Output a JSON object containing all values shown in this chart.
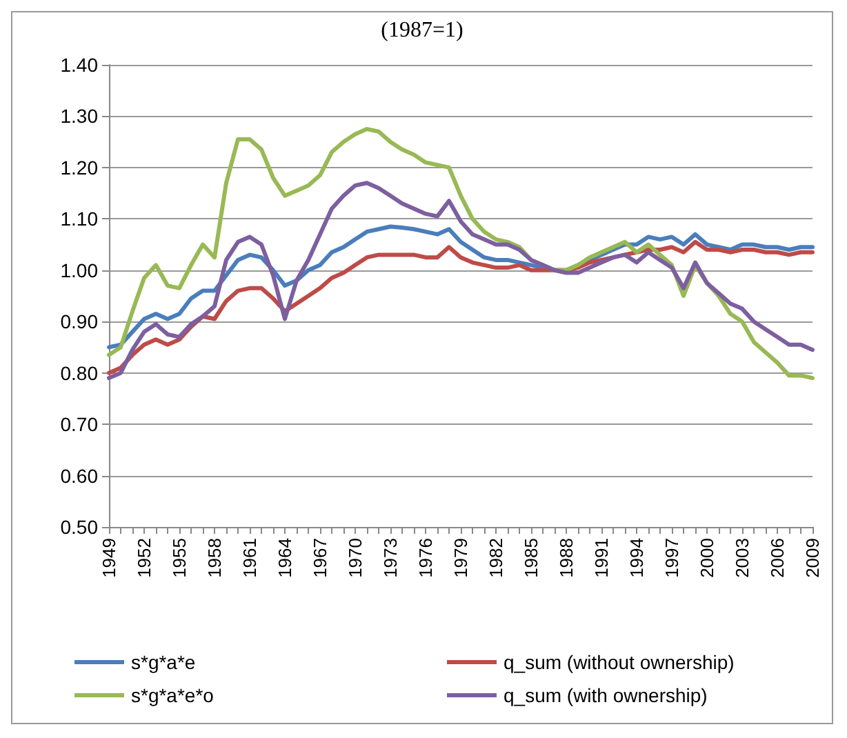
{
  "chart_data": {
    "type": "line",
    "title": "(1987=1)",
    "categories": [
      "1949",
      null,
      null,
      "1952",
      null,
      null,
      "1955",
      null,
      null,
      "1958",
      null,
      null,
      "1961",
      null,
      null,
      "1964",
      null,
      null,
      "1967",
      null,
      null,
      "1970",
      null,
      null,
      "1973",
      null,
      null,
      "1976",
      null,
      null,
      "1979",
      null,
      null,
      "1982",
      null,
      null,
      "1985",
      null,
      null,
      "1988",
      null,
      null,
      "1991",
      null,
      null,
      "1994",
      null,
      null,
      "1997",
      null,
      null,
      "2000",
      null,
      null,
      "2003",
      null,
      null,
      "2006",
      null,
      null,
      "2009"
    ],
    "series": [
      {
        "name": "s*g*a*e",
        "color": "#4a7ebb",
        "values": [
          0.85,
          0.855,
          0.88,
          0.905,
          0.915,
          0.905,
          0.915,
          0.945,
          0.96,
          0.96,
          0.99,
          1.02,
          1.03,
          1.025,
          1.0,
          0.97,
          0.98,
          1.0,
          1.01,
          1.035,
          1.045,
          1.06,
          1.075,
          1.08,
          1.085,
          1.083,
          1.08,
          1.075,
          1.07,
          1.08,
          1.055,
          1.04,
          1.025,
          1.02,
          1.02,
          1.015,
          1.01,
          1.005,
          1.0,
          1.0,
          1.01,
          1.02,
          1.03,
          1.04,
          1.05,
          1.05,
          1.065,
          1.06,
          1.065,
          1.05,
          1.07,
          1.05,
          1.045,
          1.04,
          1.05,
          1.05,
          1.045,
          1.045,
          1.04,
          1.045,
          1.045
        ]
      },
      {
        "name": "q_sum (without ownership)",
        "color": "#be4b48",
        "values": [
          0.8,
          0.81,
          0.835,
          0.855,
          0.865,
          0.855,
          0.865,
          0.89,
          0.91,
          0.905,
          0.94,
          0.96,
          0.965,
          0.965,
          0.945,
          0.92,
          0.935,
          0.95,
          0.965,
          0.985,
          0.995,
          1.01,
          1.025,
          1.03,
          1.03,
          1.03,
          1.03,
          1.025,
          1.025,
          1.045,
          1.025,
          1.015,
          1.01,
          1.005,
          1.005,
          1.01,
          1.0,
          1.0,
          1.0,
          1.0,
          1.005,
          1.015,
          1.02,
          1.025,
          1.03,
          1.035,
          1.04,
          1.04,
          1.045,
          1.035,
          1.055,
          1.04,
          1.04,
          1.035,
          1.04,
          1.04,
          1.035,
          1.035,
          1.03,
          1.035,
          1.035
        ]
      },
      {
        "name": "s*g*a*e*o",
        "color": "#98b954",
        "values": [
          0.835,
          0.85,
          0.92,
          0.985,
          1.01,
          0.97,
          0.965,
          1.01,
          1.05,
          1.025,
          1.17,
          1.255,
          1.255,
          1.235,
          1.18,
          1.145,
          1.155,
          1.165,
          1.185,
          1.23,
          1.25,
          1.265,
          1.275,
          1.27,
          1.25,
          1.235,
          1.225,
          1.21,
          1.205,
          1.2,
          1.145,
          1.1,
          1.075,
          1.06,
          1.055,
          1.045,
          1.02,
          1.01,
          1.0,
          1.0,
          1.01,
          1.025,
          1.035,
          1.045,
          1.055,
          1.035,
          1.05,
          1.03,
          1.01,
          0.95,
          1.01,
          0.975,
          0.95,
          0.915,
          0.9,
          0.86,
          0.84,
          0.82,
          0.795,
          0.795,
          0.79
        ]
      },
      {
        "name": "q_sum (with ownership)",
        "color": "#7d5fa0",
        "values": [
          0.79,
          0.8,
          0.845,
          0.88,
          0.895,
          0.875,
          0.87,
          0.895,
          0.91,
          0.93,
          1.02,
          1.055,
          1.065,
          1.05,
          0.99,
          0.905,
          0.98,
          1.02,
          1.07,
          1.12,
          1.145,
          1.165,
          1.17,
          1.16,
          1.145,
          1.13,
          1.12,
          1.11,
          1.105,
          1.135,
          1.095,
          1.07,
          1.06,
          1.05,
          1.05,
          1.04,
          1.02,
          1.01,
          1.0,
          0.995,
          0.995,
          1.005,
          1.015,
          1.025,
          1.03,
          1.015,
          1.035,
          1.02,
          1.005,
          0.965,
          1.015,
          0.975,
          0.955,
          0.935,
          0.925,
          0.9,
          0.885,
          0.87,
          0.855,
          0.855,
          0.845
        ]
      }
    ],
    "ylim": [
      0.5,
      1.4
    ],
    "yticks": [
      {
        "value": 0.5,
        "label": "0.50"
      },
      {
        "value": 0.6,
        "label": "0.60"
      },
      {
        "value": 0.7,
        "label": "0.70"
      },
      {
        "value": 0.8,
        "label": "0.80"
      },
      {
        "value": 0.9,
        "label": "0.90"
      },
      {
        "value": 1.0,
        "label": "1.00"
      },
      {
        "value": 1.1,
        "label": "1.10"
      },
      {
        "value": 1.2,
        "label": "1.20"
      },
      {
        "value": 1.3,
        "label": "1.30"
      },
      {
        "value": 1.4,
        "label": "1.40"
      }
    ],
    "grid": "y",
    "legend": "bottom",
    "marker": "none",
    "line_style": "solid"
  }
}
